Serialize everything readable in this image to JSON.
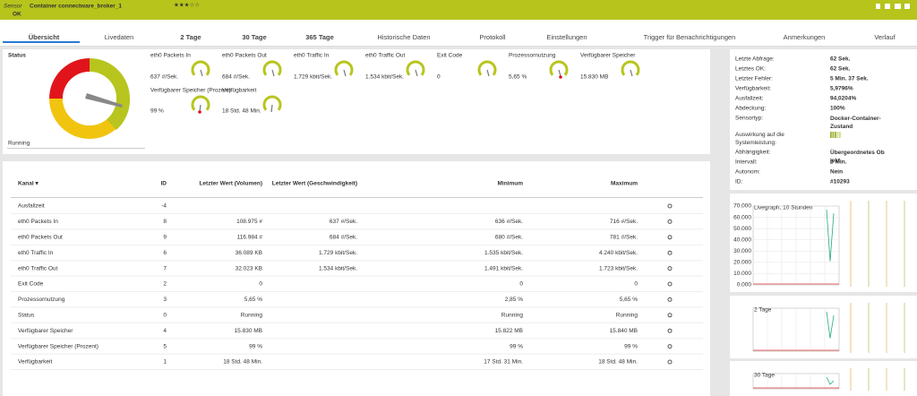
{
  "header": {
    "prefix": "Sensor",
    "title": "Container connectware_broker_1",
    "stars": "★★★☆☆",
    "status": "OK"
  },
  "tabs": [
    "Übersicht",
    "Livedaten",
    "2  Tage",
    "30 Tage",
    "365 Tage",
    "Historische Daten",
    "Protokoll",
    "Einstellungen",
    "Trigger für Benachrichtigungen",
    "Anmerkungen",
    "Verlauf"
  ],
  "status_panel": {
    "label": "Status",
    "value": "Running"
  },
  "gauges": [
    {
      "name": "eth0 Packets In",
      "value": "637 #/Sek."
    },
    {
      "name": "eth0 Packets Out",
      "value": "684 #/Sek."
    },
    {
      "name": "eth0 Traffic In",
      "value": "1.729 kbit/Sek."
    },
    {
      "name": "eth0 Traffic Out",
      "value": "1.534 kbit/Sek."
    },
    {
      "name": "Exit Code",
      "value": "0"
    },
    {
      "name": "Prozessornutzung",
      "value": "5,65 %"
    },
    {
      "name": "Verfügbarer Speicher",
      "value": "15.830 MB"
    },
    {
      "name": "Verfügbarer Speicher (Prozent)",
      "value": "99 %"
    },
    {
      "name": "Verfügbarkeit",
      "value": "18 Std. 48 Min."
    }
  ],
  "table": {
    "headers": [
      "Kanal ▾",
      "ID",
      "Letzter Wert (Volumen)",
      "Letzter Wert (Geschwindigkeit)",
      "Minimum",
      "Maximum"
    ],
    "rows": [
      [
        "Ausfallzeit",
        "-4",
        null,
        null,
        null,
        null
      ],
      [
        "eth0 Packets In",
        "8",
        "108.975 #",
        "637 #/Sek.",
        "636 #/Sek.",
        "716 #/Sek."
      ],
      [
        "eth0 Packets Out",
        "9",
        "116.984 #",
        "684 #/Sek.",
        "680 #/Sek.",
        "781 #/Sek."
      ],
      [
        "eth0 Traffic In",
        "6",
        "36.089 KB",
        "1.729 kbit/Sek.",
        "1.535 kbit/Sek.",
        "4.240 kbit/Sek."
      ],
      [
        "eth0 Traffic Out",
        "7",
        "32.023 KB",
        "1.534 kbit/Sek.",
        "1.491 kbit/Sek.",
        "1.723 kbit/Sek."
      ],
      [
        "Exit Code",
        "2",
        "0",
        null,
        "0",
        "0"
      ],
      [
        "Prozessornutzung",
        "3",
        "5,65 %",
        null,
        "2,85 %",
        "5,65 %"
      ],
      [
        "Status",
        "0",
        "Running",
        null,
        "Running",
        "Running"
      ],
      [
        "Verfügbarer Speicher",
        "4",
        "15.830 MB",
        null,
        "15.822 MB",
        "15.840 MB"
      ],
      [
        "Verfügbarer Speicher (Prozent)",
        "5",
        "99 %",
        null,
        "99 %",
        "99 %"
      ],
      [
        "Verfügbarkeit",
        "1",
        "18 Std. 48 Min.",
        null,
        "17 Std. 31 Min.",
        "18 Std. 48 Min."
      ]
    ]
  },
  "info": [
    [
      "Letzte Abfrage:",
      "62 Sek."
    ],
    [
      "Letztes OK:",
      "62 Sek."
    ],
    [
      "Letzter Fehler:",
      "5 Min. 37 Sek."
    ],
    [
      "Verfügbarkeit:",
      "5,9796%"
    ],
    [
      "Ausfallzeit:",
      "94,0204%"
    ],
    [
      "Abdeckung:",
      "100%"
    ],
    [
      "Sensortyp:",
      "Docker-Container-Zustand"
    ],
    [
      "Auswirkung auf die Systemleistung:",
      null
    ],
    [
      "Abhängigkeit:",
      "Übergeordnetes Objekt"
    ],
    [
      "Intervall:",
      "5 Min."
    ],
    [
      "Autonom:",
      "Nein"
    ],
    [
      "ID:",
      "#10293"
    ]
  ],
  "graphs": [
    {
      "title": "Livegraph, 10 Stunden",
      "yticks": [
        "70.000",
        "60.000",
        "50.000",
        "40.000",
        "30.000",
        "20.000",
        "10.000",
        "0.000"
      ]
    },
    {
      "title": "2 Tage"
    },
    {
      "title": "30 Tage"
    }
  ]
}
